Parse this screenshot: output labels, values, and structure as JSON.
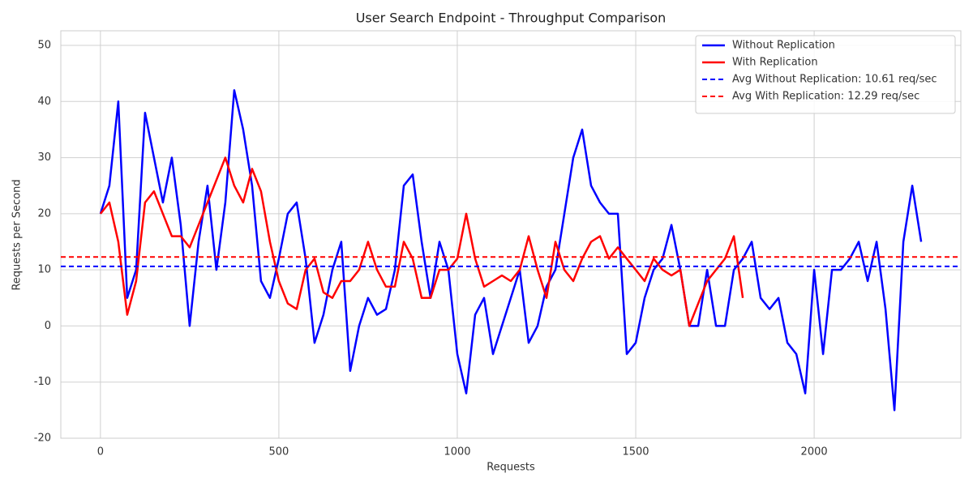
{
  "chart_data": {
    "type": "line",
    "title": "User Search Endpoint - Throughput Comparison",
    "x_label": "Requests",
    "y_label": "Requests per Second",
    "xlim": [
      -111,
      2411
    ],
    "ylim": [
      -20,
      52.6
    ],
    "xticks": [
      0,
      500,
      1000,
      1500,
      2000
    ],
    "yticks": [
      -20,
      -10,
      0,
      10,
      20,
      30,
      40,
      50
    ],
    "grid": true,
    "legend": "upper right",
    "series": [
      {
        "name": "Without Replication",
        "color": "#0000ff",
        "x": [
          0,
          25,
          50,
          75,
          100,
          125,
          150,
          175,
          200,
          225,
          250,
          275,
          300,
          325,
          350,
          375,
          400,
          425,
          450,
          475,
          500,
          525,
          550,
          575,
          600,
          625,
          650,
          675,
          700,
          725,
          750,
          775,
          800,
          825,
          850,
          875,
          900,
          925,
          950,
          975,
          1000,
          1025,
          1050,
          1075,
          1100,
          1125,
          1150,
          1175,
          1200,
          1225,
          1250,
          1275,
          1300,
          1325,
          1350,
          1375,
          1400,
          1425,
          1450,
          1475,
          1500,
          1525,
          1550,
          1575,
          1600,
          1625,
          1650,
          1675,
          1700,
          1725,
          1750,
          1775,
          1800,
          1825,
          1850,
          1875,
          1900,
          1925,
          1950,
          1975,
          2000,
          2025,
          2050,
          2075,
          2100,
          2125,
          2150,
          2175,
          2200,
          2225,
          2250,
          2275,
          2300
        ],
        "values": [
          20,
          25,
          40,
          5,
          10,
          38,
          30,
          22,
          30,
          18,
          0,
          15,
          25,
          10,
          22,
          42,
          35,
          25,
          8,
          5,
          12,
          20,
          22,
          12,
          -3,
          2,
          10,
          15,
          -8,
          0,
          5,
          2,
          3,
          10,
          25,
          27,
          15,
          5,
          15,
          10,
          -5,
          -12,
          2,
          5,
          -5,
          0,
          5,
          10,
          -3,
          0,
          7,
          10,
          20,
          30,
          35,
          25,
          22,
          20,
          20,
          -5,
          -3,
          5,
          10,
          12,
          18,
          10,
          0,
          0,
          10,
          0,
          0,
          10,
          12,
          15,
          5,
          3,
          5,
          -3,
          -5,
          -12,
          10,
          -5,
          10,
          10,
          12,
          15,
          8,
          15,
          3,
          -15,
          15,
          25,
          15
        ]
      },
      {
        "name": "With Replication",
        "color": "#ff0000",
        "x": [
          0,
          25,
          50,
          75,
          100,
          125,
          150,
          175,
          200,
          225,
          250,
          275,
          300,
          325,
          350,
          375,
          400,
          425,
          450,
          475,
          500,
          525,
          550,
          575,
          600,
          625,
          650,
          675,
          700,
          725,
          750,
          775,
          800,
          825,
          850,
          875,
          900,
          925,
          950,
          975,
          1000,
          1025,
          1050,
          1075,
          1100,
          1125,
          1150,
          1175,
          1200,
          1225,
          1250,
          1275,
          1300,
          1325,
          1350,
          1375,
          1400,
          1425,
          1450,
          1475,
          1500,
          1525,
          1550,
          1575,
          1600,
          1625,
          1650,
          1675,
          1700,
          1725,
          1750,
          1775,
          1800
        ],
        "values": [
          20,
          22,
          15,
          2,
          8,
          22,
          24,
          20,
          16,
          16,
          14,
          18,
          22,
          26,
          30,
          25,
          22,
          28,
          24,
          15,
          8,
          4,
          3,
          10,
          12,
          6,
          5,
          8,
          8,
          10,
          15,
          10,
          7,
          7,
          15,
          12,
          5,
          5,
          10,
          10,
          12,
          20,
          12,
          7,
          8,
          9,
          8,
          10,
          16,
          10,
          5,
          15,
          10,
          8,
          12,
          15,
          16,
          12,
          14,
          12,
          10,
          8,
          12,
          10,
          9,
          10,
          0,
          4,
          8,
          10,
          12,
          16,
          5
        ]
      }
    ],
    "hlines": [
      {
        "name": "Avg Without Replication: 10.61 req/sec",
        "color": "#0000ff",
        "value": 10.61
      },
      {
        "name": "Avg With Replication: 12.29 req/sec",
        "color": "#ff0000",
        "value": 12.29
      }
    ]
  }
}
